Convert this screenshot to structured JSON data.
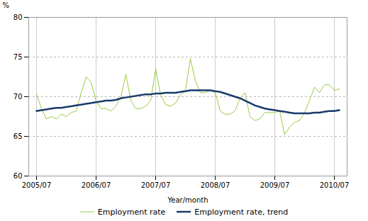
{
  "chart_data": {
    "type": "line",
    "xlabel": "Year/month",
    "ylabel": "%",
    "categories": [
      "2005/07",
      null,
      null,
      null,
      null,
      null,
      null,
      null,
      null,
      null,
      null,
      null,
      "2006/07",
      null,
      null,
      null,
      null,
      null,
      null,
      null,
      null,
      null,
      null,
      null,
      "2007/07",
      null,
      null,
      null,
      null,
      null,
      null,
      null,
      null,
      null,
      null,
      null,
      "2008/07",
      null,
      null,
      null,
      null,
      null,
      null,
      null,
      null,
      null,
      null,
      null,
      "2009/07",
      null,
      null,
      null,
      null,
      null,
      null,
      null,
      null,
      null,
      null,
      null,
      "2010/07",
      null
    ],
    "series": [
      {
        "name": "Employment rate",
        "color": "#99cc44",
        "values": [
          70.3,
          68.5,
          67.2,
          67.5,
          67.2,
          67.8,
          67.5,
          68.0,
          68.2,
          70.5,
          72.5,
          71.8,
          69.5,
          68.5,
          68.5,
          68.2,
          68.8,
          70.0,
          72.8,
          69.5,
          68.5,
          68.5,
          68.8,
          69.5,
          73.5,
          70.2,
          69.0,
          68.8,
          69.2,
          70.2,
          70.8,
          74.8,
          72.0,
          70.5,
          70.5,
          70.8,
          70.5,
          68.2,
          67.8,
          67.8,
          68.2,
          69.8,
          70.5,
          67.5,
          67.0,
          67.2,
          68.0,
          68.0,
          68.0,
          68.2,
          65.2,
          66.2,
          66.8,
          67.0,
          68.0,
          69.5,
          71.2,
          70.5,
          71.5,
          71.5,
          70.8,
          71.0
        ]
      },
      {
        "name": "Employment rate, trend",
        "color": "#1a3a6b",
        "values": [
          68.2,
          68.3,
          68.4,
          68.5,
          68.6,
          68.6,
          68.7,
          68.8,
          68.9,
          69.0,
          69.1,
          69.2,
          69.3,
          69.4,
          69.5,
          69.5,
          69.6,
          69.8,
          69.9,
          70.0,
          70.1,
          70.2,
          70.3,
          70.3,
          70.4,
          70.4,
          70.5,
          70.5,
          70.5,
          70.6,
          70.7,
          70.8,
          70.8,
          70.8,
          70.8,
          70.8,
          70.7,
          70.6,
          70.4,
          70.2,
          70.0,
          69.8,
          69.5,
          69.2,
          68.9,
          68.7,
          68.5,
          68.4,
          68.3,
          68.2,
          68.1,
          68.0,
          67.9,
          67.9,
          67.9,
          67.9,
          68.0,
          68.0,
          68.1,
          68.2,
          68.2,
          68.3
        ]
      }
    ],
    "ylim": [
      60,
      80
    ],
    "yticks": [
      60,
      65,
      70,
      75,
      80
    ],
    "grid": true,
    "legend": "bottom"
  }
}
